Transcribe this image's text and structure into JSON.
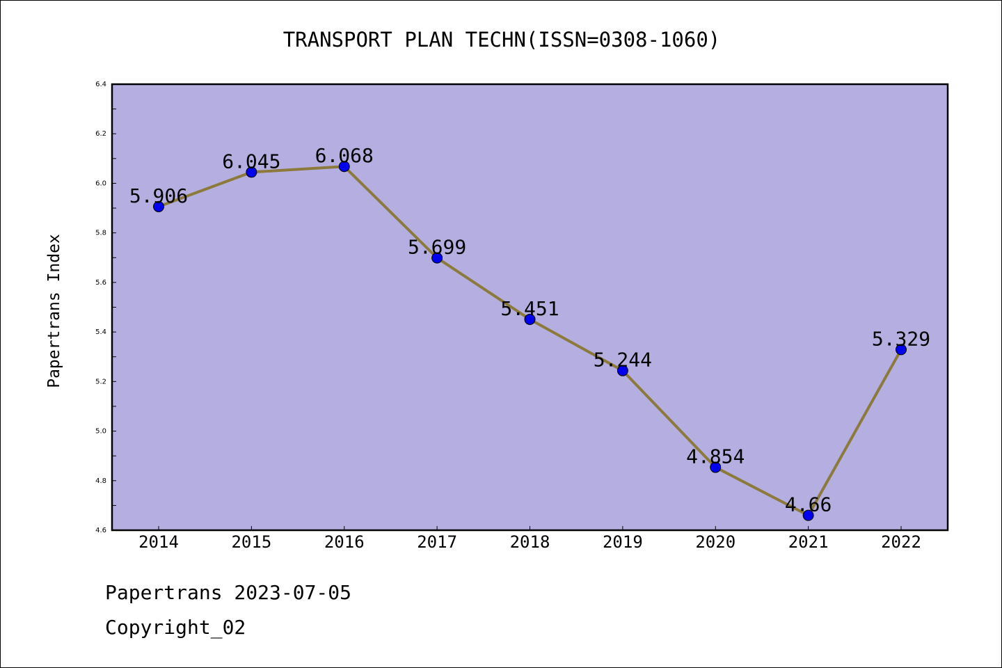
{
  "chart_data": {
    "type": "line",
    "title": "TRANSPORT PLAN TECHN(ISSN=0308-1060)",
    "xlabel": "",
    "ylabel": "Papertrans Index",
    "x": [
      "2014",
      "2015",
      "2016",
      "2017",
      "2018",
      "2019",
      "2020",
      "2021",
      "2022"
    ],
    "series": [
      {
        "values": [
          5.906,
          6.045,
          6.068,
          5.699,
          5.451,
          5.244,
          4.854,
          4.66,
          5.329
        ],
        "labels": [
          "5.906",
          "6.045",
          "6.068",
          "5.699",
          "5.451",
          "5.244",
          "4.854",
          "4.66",
          "5.329"
        ]
      }
    ],
    "ylim": [
      4.6,
      6.4
    ],
    "yticks": [
      "4.6",
      "4.8",
      "5.0",
      "5.2",
      "5.4",
      "5.6",
      "5.8",
      "6.0",
      "6.2",
      "6.4"
    ],
    "grid": false,
    "colors": {
      "plot_background": "#b5afe1",
      "line": "#8c7a3c",
      "marker": "#0000ee"
    }
  },
  "footer": {
    "line1": "Papertrans 2023-07-05",
    "line2": "Copyright_02"
  }
}
